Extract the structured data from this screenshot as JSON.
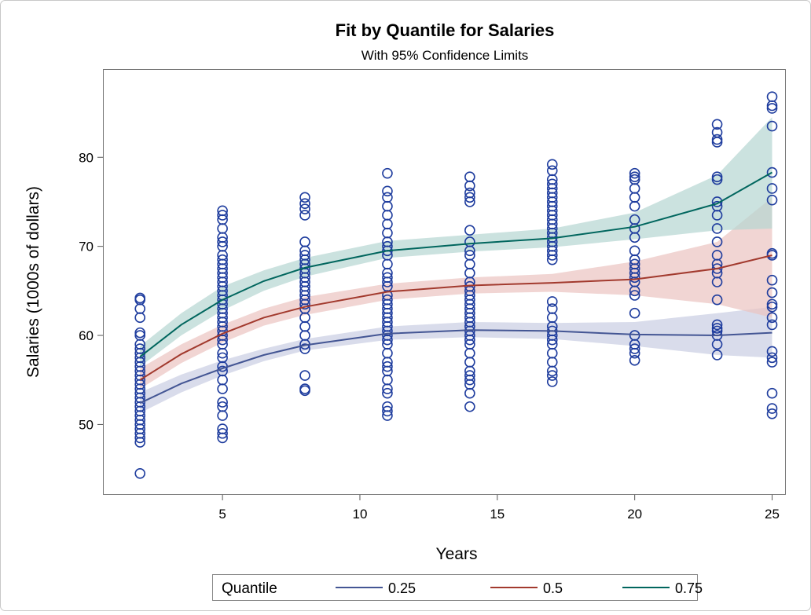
{
  "chart_data": {
    "type": "scatter",
    "title": "Fit by Quantile for Salaries",
    "subtitle": "With 95% Confidence Limits",
    "x_label": "Years",
    "y_label": "Salaries (1000s of dollars)",
    "xlim": [
      0.65,
      25.5
    ],
    "ylim": [
      42.1,
      89.9
    ],
    "xticks": [
      5,
      10,
      15,
      20,
      25
    ],
    "yticks": [
      50,
      60,
      70,
      80
    ],
    "marker_color": "#1f3d9e",
    "points": {
      "x": [
        2,
        2,
        2,
        2,
        2,
        2,
        2,
        2,
        2,
        2,
        2,
        2,
        2,
        2,
        2,
        2,
        2,
        2,
        2,
        2,
        2,
        2,
        2,
        2,
        2,
        2,
        2,
        2,
        2,
        2,
        5,
        5,
        5,
        5,
        5,
        5,
        5,
        5,
        5,
        5,
        5,
        5,
        5,
        5,
        5,
        5,
        5,
        5,
        5,
        5,
        5,
        5,
        5,
        5,
        5,
        5,
        5,
        5,
        5,
        5,
        5,
        5,
        5,
        5,
        5,
        5,
        5,
        5,
        5,
        5,
        8,
        8,
        8,
        8,
        8,
        8,
        8,
        8,
        8,
        8,
        8,
        8,
        8,
        8,
        8,
        8,
        8,
        8,
        8,
        8,
        8,
        8,
        8,
        8,
        8,
        8,
        8,
        11,
        11,
        11,
        11,
        11,
        11,
        11,
        11,
        11,
        11,
        11,
        11,
        11,
        11,
        11,
        11,
        11,
        11,
        11,
        11,
        11,
        11,
        11,
        11,
        11,
        11,
        11,
        11,
        11,
        11,
        11,
        11,
        11,
        11,
        11,
        11,
        11,
        11,
        14,
        14,
        14,
        14,
        14,
        14,
        14,
        14,
        14,
        14,
        14,
        14,
        14,
        14,
        14,
        14,
        14,
        14,
        14,
        14,
        14,
        14,
        14,
        14,
        14,
        14,
        14,
        14,
        14,
        14,
        14,
        14,
        14,
        14,
        17,
        17,
        17,
        17,
        17,
        17,
        17,
        17,
        17,
        17,
        17,
        17,
        17,
        17,
        17,
        17,
        17,
        17,
        17,
        17,
        17,
        17,
        17,
        17,
        17,
        17,
        17,
        17,
        17,
        17,
        17,
        17,
        17,
        17,
        20,
        20,
        20,
        20,
        20,
        20,
        20,
        20,
        20,
        20,
        20,
        20,
        20,
        20,
        20,
        20,
        20,
        20,
        20,
        20,
        20,
        20,
        20,
        20,
        23,
        23,
        23,
        23,
        23,
        23,
        23,
        23,
        23,
        23,
        23,
        23,
        23,
        23,
        23,
        23,
        23,
        23,
        23,
        23,
        23,
        23,
        23,
        25,
        25,
        25,
        25,
        25,
        25,
        25,
        25,
        25,
        25,
        25,
        25,
        25,
        25,
        25,
        25,
        25,
        25,
        25,
        25,
        25
      ],
      "y": [
        64.2,
        64.0,
        63.0,
        62.0,
        60.3,
        60.0,
        59.0,
        58.5,
        58.0,
        57.5,
        57.0,
        56.5,
        56.0,
        55.5,
        55.0,
        54.5,
        54.0,
        53.5,
        53.0,
        52.5,
        52.0,
        51.5,
        51.0,
        50.5,
        50.0,
        49.5,
        49.0,
        48.5,
        48.0,
        44.5,
        74.0,
        73.5,
        73.0,
        72.0,
        71.0,
        70.5,
        70.0,
        69.0,
        68.5,
        68.0,
        67.5,
        67.0,
        66.5,
        66.0,
        65.5,
        65.0,
        64.5,
        64.0,
        63.5,
        63.0,
        62.5,
        62.0,
        61.5,
        61.0,
        60.5,
        60.0,
        59.5,
        59.0,
        58.0,
        57.5,
        56.5,
        56.0,
        55.0,
        54.0,
        52.5,
        52.0,
        51.0,
        49.5,
        49.0,
        48.5,
        75.5,
        74.8,
        74.2,
        73.5,
        70.5,
        69.5,
        69.0,
        68.5,
        68.0,
        67.5,
        67.0,
        66.5,
        66.0,
        65.5,
        65.0,
        64.5,
        64.0,
        63.5,
        63.0,
        62.0,
        61.0,
        60.0,
        59.0,
        58.5,
        55.5,
        54.0,
        53.8,
        78.2,
        76.2,
        75.5,
        74.5,
        73.5,
        72.5,
        71.5,
        70.5,
        70.0,
        69.5,
        69.0,
        68.0,
        67.0,
        66.5,
        66.0,
        65.5,
        64.5,
        64.0,
        63.5,
        63.0,
        62.5,
        62.0,
        61.5,
        61.0,
        60.5,
        60.0,
        59.5,
        59.0,
        58.0,
        57.0,
        56.5,
        56.0,
        55.0,
        54.0,
        53.5,
        52.0,
        51.5,
        51.0,
        77.8,
        76.8,
        76.0,
        75.5,
        75.0,
        71.8,
        70.5,
        69.5,
        69.0,
        68.0,
        67.0,
        66.0,
        65.5,
        65.0,
        64.5,
        64.0,
        63.5,
        63.0,
        62.5,
        62.0,
        61.5,
        61.0,
        60.5,
        60.0,
        59.5,
        59.0,
        58.0,
        57.0,
        56.0,
        55.5,
        55.0,
        54.5,
        53.5,
        52.0,
        79.2,
        78.5,
        77.5,
        77.0,
        76.5,
        76.0,
        75.5,
        75.0,
        74.5,
        74.0,
        73.5,
        73.0,
        72.5,
        72.0,
        71.5,
        71.0,
        70.5,
        70.0,
        69.5,
        69.0,
        68.5,
        63.8,
        63.0,
        62.0,
        61.0,
        60.5,
        60.0,
        59.5,
        59.0,
        58.0,
        57.0,
        56.0,
        55.5,
        54.8,
        78.2,
        77.8,
        77.5,
        76.5,
        75.5,
        74.5,
        73.0,
        72.0,
        71.0,
        69.5,
        68.5,
        68.0,
        67.5,
        67.0,
        66.5,
        66.0,
        65.0,
        64.5,
        62.5,
        60.0,
        59.0,
        58.5,
        58.0,
        57.2,
        83.7,
        82.8,
        82.0,
        81.7,
        77.8,
        77.5,
        75.0,
        74.5,
        73.5,
        72.0,
        70.5,
        69.0,
        68.0,
        67.5,
        67.0,
        66.0,
        64.0,
        61.2,
        60.8,
        60.5,
        60.0,
        59.0,
        57.8,
        86.8,
        85.8,
        85.5,
        83.5,
        78.3,
        76.5,
        75.2,
        69.2,
        69.0,
        66.2,
        64.8,
        63.5,
        63.2,
        62.0,
        61.2,
        58.2,
        57.5,
        57.0,
        53.5,
        51.8,
        51.2
      ]
    },
    "curve_x": [
      2,
      3.5,
      5,
      6.5,
      8,
      11,
      14,
      17,
      20,
      23,
      25
    ],
    "legend_title": "Quantile",
    "series": [
      {
        "name": "0.25",
        "color": "#445694",
        "band_color": "#c9cde3",
        "values": [
          52.4,
          54.6,
          56.3,
          57.8,
          58.9,
          60.2,
          60.6,
          60.5,
          60.1,
          60.0,
          60.3
        ],
        "lower": [
          51.3,
          53.6,
          55.5,
          57.1,
          58.3,
          59.5,
          59.8,
          59.6,
          58.8,
          57.8,
          57.5
        ],
        "upper": [
          53.6,
          55.6,
          57.2,
          58.5,
          59.6,
          61.0,
          61.5,
          61.4,
          61.5,
          62.5,
          63.2
        ]
      },
      {
        "name": "0.5",
        "color": "#a23a2e",
        "band_color": "#ebc3c0",
        "values": [
          55.0,
          57.9,
          60.2,
          62.0,
          63.2,
          64.9,
          65.6,
          65.9,
          66.3,
          67.5,
          69.0
        ],
        "lower": [
          54.0,
          56.9,
          59.2,
          61.1,
          62.3,
          64.0,
          64.7,
          64.9,
          64.5,
          63.5,
          62.0
        ],
        "upper": [
          56.3,
          59.0,
          61.2,
          63.0,
          64.3,
          65.8,
          66.5,
          66.9,
          68.3,
          70.5,
          75.5
        ]
      },
      {
        "name": "0.75",
        "color": "#01665e",
        "band_color": "#b5d6d2",
        "values": [
          57.6,
          61.2,
          64.0,
          66.1,
          67.6,
          69.5,
          70.3,
          70.9,
          72.2,
          74.8,
          78.3
        ],
        "lower": [
          56.5,
          60.0,
          62.8,
          65.0,
          66.6,
          68.7,
          69.4,
          69.9,
          70.8,
          71.8,
          72.0
        ],
        "upper": [
          58.8,
          62.5,
          65.5,
          67.3,
          68.7,
          70.6,
          71.3,
          72.0,
          73.8,
          78.0,
          84.5
        ]
      }
    ]
  }
}
